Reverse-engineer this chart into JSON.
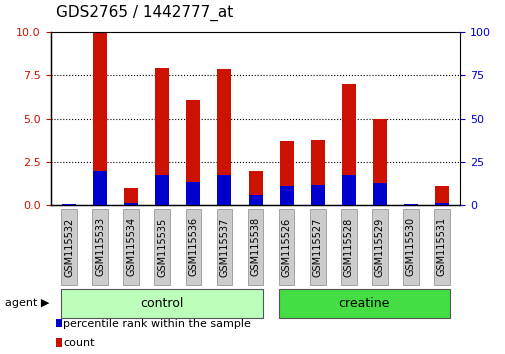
{
  "title": "GDS2765 / 1442777_at",
  "samples": [
    "GSM115532",
    "GSM115533",
    "GSM115534",
    "GSM115535",
    "GSM115536",
    "GSM115537",
    "GSM115538",
    "GSM115526",
    "GSM115527",
    "GSM115528",
    "GSM115529",
    "GSM115530",
    "GSM115531"
  ],
  "count_values": [
    0.05,
    10.0,
    1.0,
    7.9,
    6.1,
    7.85,
    2.0,
    3.7,
    3.75,
    7.0,
    5.0,
    0.05,
    1.1
  ],
  "percentile_values": [
    0.05,
    2.0,
    0.15,
    1.75,
    1.35,
    1.75,
    0.6,
    1.1,
    1.2,
    1.75,
    1.3,
    0.05,
    0.15
  ],
  "groups": [
    {
      "label": "control",
      "indices": [
        0,
        1,
        2,
        3,
        4,
        5,
        6
      ],
      "color": "#bbffbb"
    },
    {
      "label": "creatine",
      "indices": [
        7,
        8,
        9,
        10,
        11,
        12
      ],
      "color": "#44dd44"
    }
  ],
  "bar_color": "#cc1100",
  "percentile_color": "#0000cc",
  "ylim_left": [
    0,
    10
  ],
  "ylim_right": [
    0,
    100
  ],
  "yticks_left": [
    0,
    2.5,
    5,
    7.5,
    10
  ],
  "yticks_right": [
    0,
    25,
    50,
    75,
    100
  ],
  "bar_width": 0.45,
  "agent_label": "agent",
  "legend_items": [
    {
      "label": "count",
      "color": "#cc1100"
    },
    {
      "label": "percentile rank within the sample",
      "color": "#0000cc"
    }
  ],
  "tick_label_color_left": "#cc1100",
  "tick_label_color_right": "#0000cc",
  "title_fontsize": 11,
  "axis_fontsize": 8,
  "sample_fontsize": 7,
  "group_fontsize": 9,
  "legend_fontsize": 8
}
